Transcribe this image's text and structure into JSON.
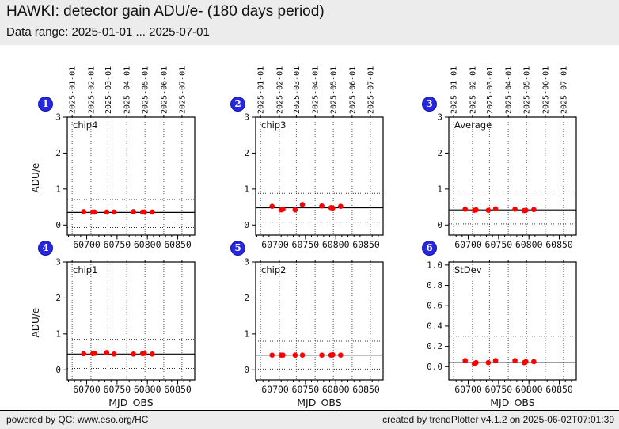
{
  "header": {
    "title": "HAWKI: detector gain ADU/e- (180 days period)",
    "subtitle": "Data range: 2025-01-01 ... 2025-07-01"
  },
  "footer": {
    "left": "powered by QC: www.eso.org/HC",
    "right": "created by trendPlotter v4.1.2 on 2025-06-02T07:01:39"
  },
  "colors": {
    "band_bg": "#ececec",
    "badge": "#2727de",
    "badge_border": "#1414ad",
    "point": "#ff0000",
    "axis": "#000000",
    "gridline": "#555555",
    "threshold": "#333333"
  },
  "axes": {
    "x_label": "MJD_OBS",
    "y_label": "ADU/e-",
    "x_range": [
      60668,
      60878
    ],
    "x_minor_step": 10,
    "x_major_ticks": [
      {
        "v": 60700,
        "label": "60700"
      },
      {
        "v": 60750,
        "label": "60750"
      },
      {
        "v": 60800,
        "label": "60800"
      },
      {
        "v": 60850,
        "label": "60850"
      }
    ],
    "date_ticks": [
      {
        "mjd": 60676,
        "label": "2025-01-01"
      },
      {
        "mjd": 60707,
        "label": "2025-02-01"
      },
      {
        "mjd": 60735,
        "label": "2025-03-01"
      },
      {
        "mjd": 60766,
        "label": "2025-04-01"
      },
      {
        "mjd": 60796,
        "label": "2025-05-01"
      },
      {
        "mjd": 60827,
        "label": "2025-06-01"
      },
      {
        "mjd": 60857,
        "label": "2025-07-01"
      }
    ]
  },
  "chart_data": [
    {
      "index": "1",
      "type": "scatter",
      "label": "chip4",
      "row": 0,
      "col": 0,
      "show_y_label": true,
      "show_dates": true,
      "show_x_label": false,
      "ylim": [
        -0.28,
        3.0
      ],
      "y_ticks": [
        {
          "v": 0,
          "label": "0"
        },
        {
          "v": 1,
          "label": "1"
        },
        {
          "v": 2,
          "label": "2"
        },
        {
          "v": 3,
          "label": "3"
        }
      ],
      "mean_line": 0.35,
      "thresholds": [
        0.71,
        -0.07
      ],
      "x": [
        60695,
        60710,
        60713,
        60733,
        60745,
        60777,
        60792,
        60795,
        60808
      ],
      "y": [
        0.37,
        0.36,
        0.36,
        0.36,
        0.36,
        0.37,
        0.36,
        0.36,
        0.36
      ]
    },
    {
      "index": "2",
      "type": "scatter",
      "label": "chip3",
      "row": 0,
      "col": 1,
      "show_y_label": false,
      "show_dates": true,
      "show_x_label": false,
      "ylim": [
        -0.28,
        3.0
      ],
      "y_ticks": [
        {
          "v": 0,
          "label": "0"
        },
        {
          "v": 1,
          "label": "1"
        },
        {
          "v": 2,
          "label": "2"
        },
        {
          "v": 3,
          "label": "3"
        }
      ],
      "mean_line": 0.48,
      "thresholds": [
        0.88,
        0.08
      ],
      "x": [
        60695,
        60710,
        60713,
        60733,
        60745,
        60777,
        60792,
        60795,
        60808
      ],
      "y": [
        0.52,
        0.42,
        0.44,
        0.42,
        0.57,
        0.53,
        0.48,
        0.47,
        0.52
      ]
    },
    {
      "index": "3",
      "type": "scatter",
      "label": "Average",
      "row": 0,
      "col": 2,
      "show_y_label": false,
      "show_dates": true,
      "show_x_label": false,
      "ylim": [
        -0.28,
        3.0
      ],
      "y_ticks": [
        {
          "v": 0,
          "label": "0"
        },
        {
          "v": 1,
          "label": "1"
        },
        {
          "v": 2,
          "label": "2"
        },
        {
          "v": 3,
          "label": "3"
        }
      ],
      "mean_line": 0.42,
      "thresholds": [
        0.81,
        0.03
      ],
      "x": [
        60695,
        60710,
        60713,
        60733,
        60745,
        60777,
        60792,
        60795,
        60808
      ],
      "y": [
        0.44,
        0.41,
        0.42,
        0.41,
        0.45,
        0.44,
        0.4,
        0.41,
        0.43
      ]
    },
    {
      "index": "4",
      "type": "scatter",
      "label": "chip1",
      "row": 1,
      "col": 0,
      "show_y_label": true,
      "show_dates": false,
      "show_x_label": true,
      "ylim": [
        -0.28,
        3.0
      ],
      "y_ticks": [
        {
          "v": 0,
          "label": "0"
        },
        {
          "v": 1,
          "label": "1"
        },
        {
          "v": 2,
          "label": "2"
        },
        {
          "v": 3,
          "label": "3"
        }
      ],
      "mean_line": 0.44,
      "thresholds": [
        0.85,
        0.04
      ],
      "x": [
        60695,
        60710,
        60713,
        60733,
        60745,
        60777,
        60792,
        60795,
        60808
      ],
      "y": [
        0.45,
        0.45,
        0.46,
        0.48,
        0.44,
        0.44,
        0.45,
        0.46,
        0.44
      ]
    },
    {
      "index": "5",
      "type": "scatter",
      "label": "chip2",
      "row": 1,
      "col": 1,
      "show_y_label": false,
      "show_dates": false,
      "show_x_label": true,
      "ylim": [
        -0.28,
        3.0
      ],
      "y_ticks": [
        {
          "v": 0,
          "label": "0"
        },
        {
          "v": 1,
          "label": "1"
        },
        {
          "v": 2,
          "label": "2"
        },
        {
          "v": 3,
          "label": "3"
        }
      ],
      "mean_line": 0.41,
      "thresholds": [
        0.8,
        0.02
      ],
      "x": [
        60695,
        60710,
        60713,
        60733,
        60745,
        60777,
        60792,
        60795,
        60808
      ],
      "y": [
        0.41,
        0.41,
        0.41,
        0.41,
        0.41,
        0.41,
        0.41,
        0.42,
        0.41
      ]
    },
    {
      "index": "6",
      "type": "scatter",
      "label": "StDev",
      "row": 1,
      "col": 2,
      "show_y_label": false,
      "show_dates": false,
      "show_x_label": true,
      "ylim": [
        -0.13,
        1.03
      ],
      "y_ticks": [
        {
          "v": 0,
          "label": "0.0"
        },
        {
          "v": 0.2,
          "label": "0.2"
        },
        {
          "v": 0.4,
          "label": "0.4"
        },
        {
          "v": 0.6,
          "label": "0.6"
        },
        {
          "v": 0.8,
          "label": "0.8"
        },
        {
          "v": 1.0,
          "label": "1.0"
        }
      ],
      "mean_line": 0.04,
      "thresholds": [
        0.3
      ],
      "x": [
        60695,
        60710,
        60713,
        60733,
        60745,
        60777,
        60792,
        60795,
        60808
      ],
      "y": [
        0.06,
        0.03,
        0.04,
        0.04,
        0.06,
        0.06,
        0.04,
        0.05,
        0.05
      ]
    }
  ]
}
